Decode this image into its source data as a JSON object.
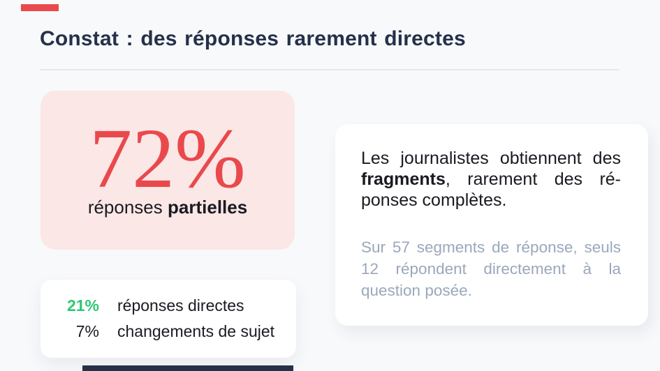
{
  "slide": {
    "title": "Constat : des réponses rarement directes"
  },
  "highlight_card": {
    "value": "72%",
    "label_regular": "réponses",
    "label_bold": "partielles"
  },
  "breakdown_card": {
    "rows": [
      {
        "value": "21%",
        "label": "réponses directes"
      },
      {
        "value": "7%",
        "label": "changements de sujet"
      }
    ]
  },
  "insight_card": {
    "lead_prefix": "Les journalistes obtiennent des ",
    "lead_bold": "fragments",
    "lead_suffix": ", rarement des ré­ponses complètes.",
    "note": "Sur 57 segments de réponse, seuls 12 répondent directement à la question posée."
  },
  "colors": {
    "accent_red": "#e9494d",
    "accent_green": "#2fc873",
    "title_navy": "#243149",
    "body_text": "#1a1a22",
    "muted_gray": "#9aa7bc",
    "pink_card_bg": "#fbe7e5",
    "page_bg": "#f8f9fb",
    "divider": "#e4e7ee"
  }
}
